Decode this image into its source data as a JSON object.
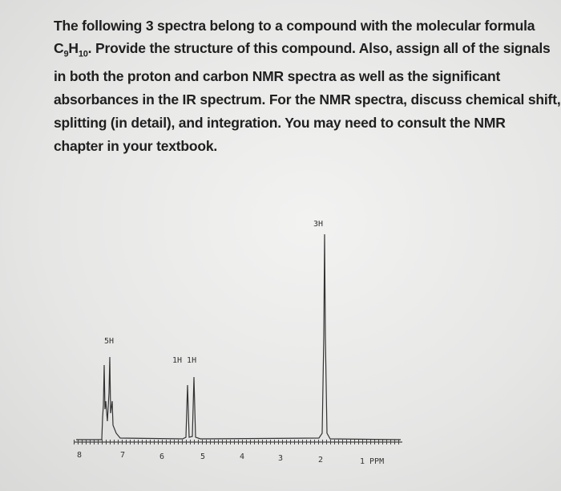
{
  "question": {
    "line1": "The following 3 spectra belong to a compound with the molecular formula",
    "formula": {
      "c": "C",
      "c_sub": "9",
      "h": "H",
      "h_sub": "10"
    },
    "line2_rest": ". Provide the structure of this compound. Also, assign all of the signals",
    "line3": "in both the proton and carbon NMR spectra as well as the significant",
    "line4": "absorbances in the IR spectrum. For the NMR spectra, discuss chemical shift,",
    "line5": "splitting (in detail), and integration. You may need to consult the NMR",
    "line6": "chapter in your textbook."
  },
  "spectrum": {
    "integrations": [
      "5H",
      "1H 1H",
      "3H"
    ],
    "axis_labels": [
      "8",
      "7",
      "6",
      "5",
      "4",
      "3",
      "2",
      "1 PPM"
    ]
  }
}
